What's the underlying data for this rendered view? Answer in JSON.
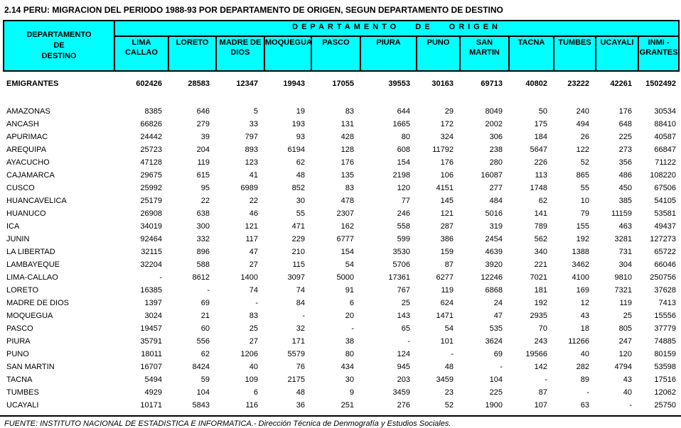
{
  "title": "2.14  PERU: MIGRACION DEL PERIODO 1988-93 POR DEPARTAMENTO DE ORIGEN, SEGUN DEPARTAMENTO DE DESTINO",
  "colors": {
    "header_bg": "#00ffff",
    "border": "#000000"
  },
  "table": {
    "dest_header": "DEPARTAMENTO\nDE\nDESTINO",
    "origin_header": "DEPARTAMENTO  DE  ORIGEN",
    "columns": [
      "LIMA\nCALLAO",
      "LORETO",
      "MADRE DE\nDIOS",
      "MOQUEGUA",
      "PASCO",
      "PIURA",
      "PUNO",
      "SAN\nMARTIN",
      "TACNA",
      "TUMBES",
      "UCAYALI",
      "INMI -\nGRANTES"
    ],
    "emigrantes": {
      "name": "EMIGRANTES",
      "values": [
        "602426",
        "28583",
        "12347",
        "19943",
        "17055",
        "39553",
        "30163",
        "69713",
        "40802",
        "23222",
        "42261",
        "1502492"
      ]
    },
    "body_rows": [
      {
        "name": "AMAZONAS",
        "values": [
          "8385",
          "646",
          "5",
          "19",
          "83",
          "644",
          "29",
          "8049",
          "50",
          "240",
          "176",
          "30534"
        ]
      },
      {
        "name": "ANCASH",
        "values": [
          "66826",
          "279",
          "33",
          "193",
          "131",
          "1665",
          "172",
          "2002",
          "175",
          "494",
          "648",
          "88410"
        ]
      },
      {
        "name": "APURIMAC",
        "values": [
          "24442",
          "39",
          "797",
          "93",
          "428",
          "80",
          "324",
          "306",
          "184",
          "26",
          "225",
          "40587"
        ]
      },
      {
        "name": "AREQUIPA",
        "values": [
          "25723",
          "204",
          "893",
          "6194",
          "128",
          "608",
          "11792",
          "238",
          "5647",
          "122",
          "273",
          "66847"
        ]
      },
      {
        "name": "AYACUCHO",
        "values": [
          "47128",
          "119",
          "123",
          "62",
          "176",
          "154",
          "176",
          "280",
          "226",
          "52",
          "356",
          "71122"
        ]
      },
      {
        "name": "CAJAMARCA",
        "values": [
          "29675",
          "615",
          "41",
          "48",
          "135",
          "2198",
          "106",
          "16087",
          "113",
          "865",
          "486",
          "108220"
        ]
      },
      {
        "name": "CUSCO",
        "values": [
          "25992",
          "95",
          "6989",
          "852",
          "83",
          "120",
          "4151",
          "277",
          "1748",
          "55",
          "450",
          "67506"
        ]
      },
      {
        "name": "HUANCAVELICA",
        "values": [
          "25179",
          "22",
          "22",
          "30",
          "478",
          "77",
          "145",
          "484",
          "62",
          "10",
          "385",
          "54105"
        ]
      },
      {
        "name": "HUANUCO",
        "values": [
          "26908",
          "638",
          "46",
          "55",
          "2307",
          "246",
          "121",
          "5016",
          "141",
          "79",
          "11159",
          "53581"
        ]
      },
      {
        "name": "ICA",
        "values": [
          "34019",
          "300",
          "121",
          "471",
          "162",
          "558",
          "287",
          "319",
          "789",
          "155",
          "463",
          "49437"
        ]
      },
      {
        "name": "JUNIN",
        "values": [
          "92464",
          "332",
          "117",
          "229",
          "6777",
          "599",
          "386",
          "2454",
          "562",
          "192",
          "3281",
          "127273"
        ]
      },
      {
        "name": "LA LIBERTAD",
        "values": [
          "32115",
          "896",
          "47",
          "210",
          "154",
          "3530",
          "159",
          "4639",
          "340",
          "1388",
          "731",
          "65722"
        ]
      },
      {
        "name": "LAMBAYEQUE",
        "values": [
          "32204",
          "588",
          "27",
          "115",
          "54",
          "5706",
          "87",
          "3920",
          "221",
          "3462",
          "304",
          "66046"
        ]
      },
      {
        "name": "LIMA-CALLAO",
        "values": [
          "-",
          "8612",
          "1400",
          "3097",
          "5000",
          "17361",
          "6277",
          "12246",
          "7021",
          "4100",
          "9810",
          "250756"
        ]
      },
      {
        "name": "LORETO",
        "values": [
          "16385",
          "-",
          "74",
          "74",
          "91",
          "767",
          "119",
          "6868",
          "181",
          "169",
          "7321",
          "37628"
        ]
      },
      {
        "name": "MADRE DE DIOS",
        "values": [
          "1397",
          "69",
          "-",
          "84",
          "6",
          "25",
          "624",
          "24",
          "192",
          "12",
          "119",
          "7413"
        ]
      },
      {
        "name": "MOQUEGUA",
        "values": [
          "3024",
          "21",
          "83",
          "-",
          "20",
          "143",
          "1471",
          "47",
          "2935",
          "43",
          "25",
          "15556"
        ]
      },
      {
        "name": "PASCO",
        "values": [
          "19457",
          "60",
          "25",
          "32",
          "-",
          "65",
          "54",
          "535",
          "70",
          "18",
          "805",
          "37779"
        ]
      },
      {
        "name": "PIURA",
        "values": [
          "35791",
          "556",
          "27",
          "171",
          "38",
          "-",
          "101",
          "3624",
          "243",
          "11266",
          "247",
          "74885"
        ]
      },
      {
        "name": "PUNO",
        "values": [
          "18011",
          "62",
          "1206",
          "5579",
          "80",
          "124",
          "-",
          "69",
          "19566",
          "40",
          "120",
          "80159"
        ]
      },
      {
        "name": "SAN MARTIN",
        "values": [
          "16707",
          "8424",
          "40",
          "76",
          "434",
          "945",
          "48",
          "-",
          "142",
          "282",
          "4794",
          "53598"
        ]
      },
      {
        "name": "TACNA",
        "values": [
          "5494",
          "59",
          "109",
          "2175",
          "30",
          "203",
          "3459",
          "104",
          "-",
          "89",
          "43",
          "17516"
        ]
      },
      {
        "name": "TUMBES",
        "values": [
          "4929",
          "104",
          "6",
          "48",
          "9",
          "3459",
          "23",
          "225",
          "87",
          "-",
          "40",
          "12062"
        ]
      },
      {
        "name": "UCAYALI",
        "values": [
          "10171",
          "5843",
          "116",
          "36",
          "251",
          "276",
          "52",
          "1900",
          "107",
          "63",
          "-",
          "25750"
        ]
      }
    ]
  },
  "footer": {
    "source": "FUENTE: INSTITUTO NACIONAL DE ESTADISTICA E INFORMATICA.- Dirección Técnica de Denmografía y Estudios Sociales."
  }
}
